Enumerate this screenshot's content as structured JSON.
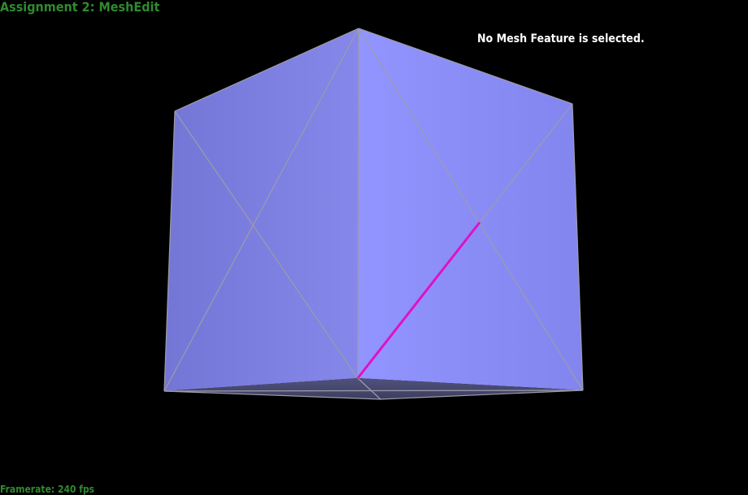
{
  "app": {
    "title": "Assignment 2: MeshEdit"
  },
  "overlay": {
    "status": "No Mesh Feature is selected.",
    "framerate": "Framerate: 240 fps"
  },
  "colors": {
    "background": "#000000",
    "title_green": "#2f8a2f",
    "status_white": "#ffffff",
    "mesh_fill": "#8a8cf5",
    "mesh_edge": "#a0a0a8",
    "highlight_edge": "#e010c8"
  },
  "mesh": {
    "description_type": "cube-like mesh with triangulated faces",
    "highlighted_edges": 1
  }
}
